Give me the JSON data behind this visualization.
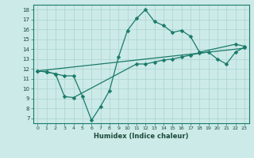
{
  "background_color": "#cceae7",
  "grid_color": "#aad4d0",
  "line_color": "#1a7a6a",
  "xlabel": "Humidex (Indice chaleur)",
  "xlim": [
    -0.5,
    23.5
  ],
  "ylim": [
    6.5,
    18.5
  ],
  "xticks": [
    0,
    1,
    2,
    3,
    4,
    5,
    6,
    7,
    8,
    9,
    10,
    11,
    12,
    13,
    14,
    15,
    16,
    17,
    18,
    19,
    20,
    21,
    22,
    23
  ],
  "yticks": [
    7,
    8,
    9,
    10,
    11,
    12,
    13,
    14,
    15,
    16,
    17,
    18
  ],
  "line1_x": [
    0,
    1,
    2,
    3,
    4,
    5,
    6,
    7,
    8,
    9,
    10,
    11,
    12,
    13,
    14,
    15,
    16,
    17,
    18,
    22,
    23
  ],
  "line1_y": [
    11.8,
    11.7,
    11.5,
    11.3,
    11.3,
    9.2,
    6.8,
    8.2,
    9.8,
    13.2,
    15.9,
    17.1,
    18.0,
    16.8,
    16.4,
    15.7,
    15.9,
    15.3,
    13.7,
    14.5,
    14.3
  ],
  "line2_x": [
    0,
    1,
    2,
    3,
    4,
    11,
    12,
    13,
    14,
    15,
    16,
    17,
    18,
    19,
    20,
    21,
    22,
    23
  ],
  "line2_y": [
    11.8,
    11.7,
    11.5,
    9.2,
    9.1,
    12.5,
    12.5,
    12.7,
    12.9,
    13.0,
    13.2,
    13.4,
    13.6,
    13.7,
    13.0,
    12.5,
    13.7,
    14.2
  ],
  "line3_x": [
    0,
    23
  ],
  "line3_y": [
    11.8,
    14.1
  ]
}
